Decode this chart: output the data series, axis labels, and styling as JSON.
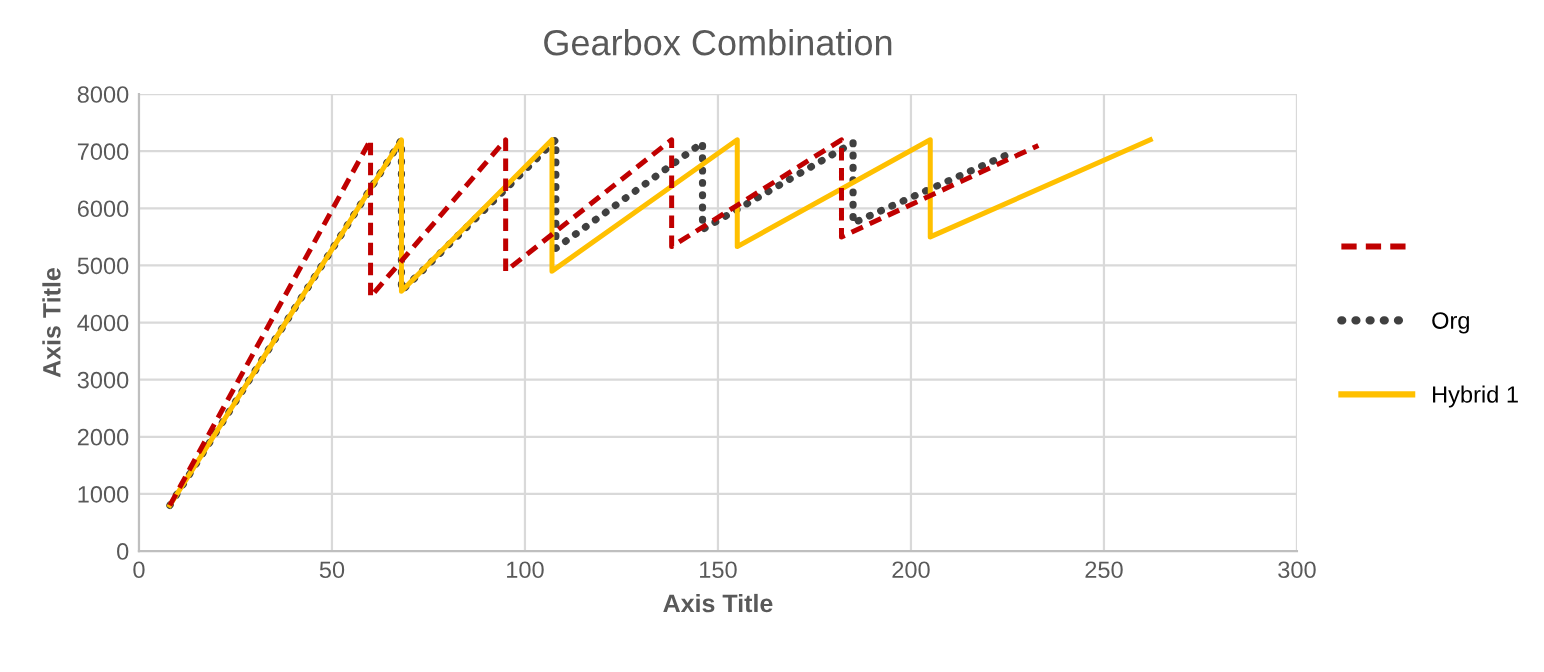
{
  "chart_data": {
    "type": "line",
    "title": "Gearbox Combination",
    "xlabel": "Axis Title",
    "ylabel": "Axis Title",
    "xlim": [
      0,
      300
    ],
    "xticks": [
      0,
      50,
      100,
      150,
      200,
      250,
      300
    ],
    "ylim": [
      0,
      8000
    ],
    "yticks": [
      0,
      1000,
      2000,
      3000,
      4000,
      5000,
      6000,
      7000,
      8000
    ],
    "grid": true,
    "legend": "right",
    "marker": "none",
    "series": [
      {
        "color": "#c00000",
        "line_style": "dashed",
        "x": [
          8,
          60,
          60,
          95,
          95,
          138,
          138,
          182,
          182,
          233
        ],
        "values": [
          800,
          7200,
          4450,
          7200,
          4900,
          7200,
          5330,
          7200,
          5500,
          7100
        ]
      },
      {
        "name": "Org",
        "color": "#404040",
        "line_style": "dotted",
        "x": [
          8,
          68,
          68,
          108,
          108,
          146,
          146,
          185,
          185,
          227
        ],
        "values": [
          800,
          7200,
          4550,
          7200,
          5300,
          7150,
          5630,
          7150,
          5740,
          7000
        ]
      },
      {
        "name": "Hybrid 1",
        "color": "#ffc000",
        "line_style": "solid",
        "x": [
          8,
          68,
          68,
          107,
          107,
          155,
          155,
          205,
          205,
          262
        ],
        "values": [
          800,
          7200,
          4550,
          7200,
          4900,
          7200,
          5330,
          7200,
          5500,
          7200
        ]
      }
    ]
  }
}
